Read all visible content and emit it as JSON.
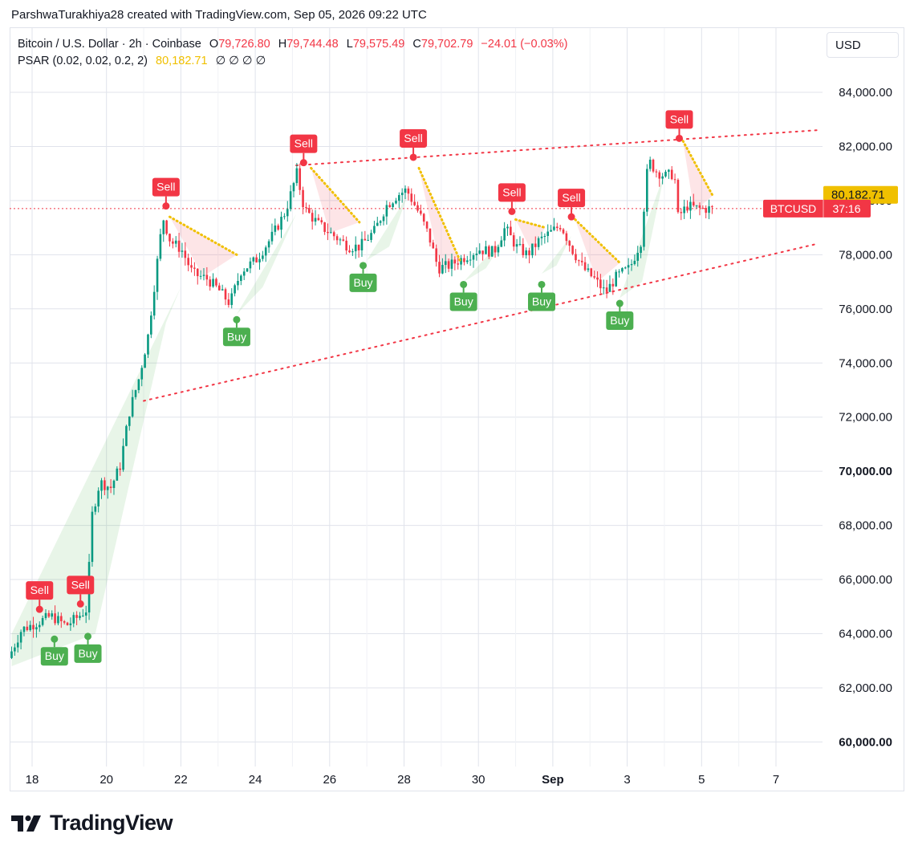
{
  "caption": "ParshwaTurakhiya28 created with TradingView.com, Sep 05, 2026 09:22 UTC",
  "legend": {
    "symbol": "Bitcoin / U.S. Dollar · 2h · Coinbase",
    "open_label": "O",
    "open": "79,726.80",
    "high_label": "H",
    "high": "79,744.48",
    "low_label": "L",
    "low": "79,575.49",
    "close_label": "C",
    "close": "79,702.79",
    "change": "−24.01 (−0.03%)",
    "psar_label": "PSAR (0.02, 0.02, 0.2, 2)",
    "psar_value": "80,182.71",
    "psar_flags": "∅ ∅ ∅ ∅"
  },
  "currency": "USD",
  "logo_text": "TradingView",
  "colors": {
    "up": "#089981",
    "down": "#f23645",
    "psar": "#f0c000",
    "buy": "#4caf50",
    "sell": "#f23645"
  },
  "chart_data": {
    "type": "candlestick",
    "title": "Bitcoin / U.S. Dollar · 2h · Coinbase",
    "ylim": [
      59000,
      86500
    ],
    "y_ticks": [
      "84,000.00",
      "82,000.00",
      "80,000.00",
      "78,000.00",
      "76,000.00",
      "74,000.00",
      "72,000.00",
      "70,000.00",
      "68,000.00",
      "66,000.00",
      "64,000.00",
      "62,000.00",
      "60,000.00"
    ],
    "y_tick_values": [
      84000,
      82000,
      80000,
      78000,
      76000,
      74000,
      72000,
      70000,
      68000,
      66000,
      64000,
      62000,
      60000
    ],
    "x_ticks": [
      "18",
      "20",
      "22",
      "24",
      "26",
      "28",
      "30",
      "Sep",
      "3",
      "5",
      "7"
    ],
    "x_tick_days": [
      18,
      20,
      22,
      24,
      26,
      28,
      30,
      32,
      34,
      36,
      38
    ],
    "grid": true,
    "current_price": {
      "label": "BTCUSD",
      "countdown": "37:16",
      "value": 79702.79
    },
    "psar_value": {
      "label": "80,182.71",
      "value": 80182.71
    },
    "price_path": [
      [
        17.45,
        63100
      ],
      [
        17.8,
        64150
      ],
      [
        18.2,
        64400
      ],
      [
        18.6,
        64650
      ],
      [
        19.0,
        64300
      ],
      [
        19.3,
        64600
      ],
      [
        19.55,
        64900
      ],
      [
        19.7,
        68400
      ],
      [
        19.9,
        69600
      ],
      [
        20.2,
        69400
      ],
      [
        20.45,
        70200
      ],
      [
        20.7,
        72200
      ],
      [
        20.95,
        73400
      ],
      [
        21.2,
        75000
      ],
      [
        21.4,
        77200
      ],
      [
        21.6,
        79400
      ],
      [
        21.8,
        78500
      ],
      [
        22.1,
        78200
      ],
      [
        22.4,
        77300
      ],
      [
        22.8,
        77100
      ],
      [
        23.1,
        76700
      ],
      [
        23.4,
        76200
      ],
      [
        23.7,
        77400
      ],
      [
        24.1,
        77800
      ],
      [
        24.5,
        78600
      ],
      [
        24.9,
        79600
      ],
      [
        25.2,
        81000
      ],
      [
        25.4,
        79700
      ],
      [
        25.8,
        79100
      ],
      [
        26.2,
        78700
      ],
      [
        26.6,
        78300
      ],
      [
        26.9,
        78300
      ],
      [
        27.3,
        78900
      ],
      [
        27.6,
        79800
      ],
      [
        27.9,
        80200
      ],
      [
        28.15,
        80400
      ],
      [
        28.5,
        79500
      ],
      [
        28.75,
        78700
      ],
      [
        29.0,
        77500
      ],
      [
        29.3,
        77600
      ],
      [
        29.7,
        77900
      ],
      [
        30.1,
        78200
      ],
      [
        30.5,
        78100
      ],
      [
        30.8,
        79000
      ],
      [
        31.1,
        78300
      ],
      [
        31.4,
        78000
      ],
      [
        31.7,
        78500
      ],
      [
        32.0,
        78800
      ],
      [
        32.3,
        79100
      ],
      [
        32.6,
        78200
      ],
      [
        32.9,
        77500
      ],
      [
        33.2,
        77100
      ],
      [
        33.5,
        76600
      ],
      [
        33.8,
        77200
      ],
      [
        34.15,
        77500
      ],
      [
        34.45,
        78500
      ],
      [
        34.65,
        81500
      ],
      [
        34.85,
        81100
      ],
      [
        35.1,
        80900
      ],
      [
        35.35,
        81000
      ],
      [
        35.45,
        79400
      ],
      [
        35.7,
        79800
      ],
      [
        36.0,
        79700
      ],
      [
        36.3,
        79700
      ]
    ],
    "signals": [
      {
        "type": "Sell",
        "label": "Sell",
        "x": 18.2,
        "price": 64900
      },
      {
        "type": "Buy",
        "label": "Buy",
        "x": 18.6,
        "price": 63800
      },
      {
        "type": "Buy",
        "label": "Buy",
        "x": 19.5,
        "price": 63900
      },
      {
        "type": "Sell",
        "label": "Sell",
        "x": 19.3,
        "price": 65100
      },
      {
        "type": "Sell",
        "label": "Sell",
        "x": 21.6,
        "price": 79800
      },
      {
        "type": "Buy",
        "label": "Buy",
        "x": 23.5,
        "price": 75600
      },
      {
        "type": "Sell",
        "label": "Sell",
        "x": 25.3,
        "price": 81400
      },
      {
        "type": "Buy",
        "label": "Buy",
        "x": 26.9,
        "price": 77600
      },
      {
        "type": "Sell",
        "label": "Sell",
        "x": 28.25,
        "price": 81600
      },
      {
        "type": "Buy",
        "label": "Buy",
        "x": 29.6,
        "price": 76900
      },
      {
        "type": "Sell",
        "label": "Sell",
        "x": 30.9,
        "price": 79600
      },
      {
        "type": "Buy",
        "label": "Buy",
        "x": 31.7,
        "price": 76900
      },
      {
        "type": "Sell",
        "label": "Sell",
        "x": 32.5,
        "price": 79400
      },
      {
        "type": "Buy",
        "label": "Buy",
        "x": 33.8,
        "price": 76200
      },
      {
        "type": "Sell",
        "label": "Sell",
        "x": 35.4,
        "price": 82300
      }
    ],
    "psar_segments": [
      [
        [
          21.7,
          79400
        ],
        [
          23.5,
          78000
        ]
      ],
      [
        [
          25.5,
          81200
        ],
        [
          26.8,
          79200
        ]
      ],
      [
        [
          28.4,
          81200
        ],
        [
          29.5,
          77800
        ]
      ],
      [
        [
          31.0,
          79300
        ],
        [
          31.8,
          79000
        ]
      ],
      [
        [
          32.6,
          79300
        ],
        [
          33.8,
          77700
        ]
      ],
      [
        [
          35.5,
          82200
        ],
        [
          36.3,
          80180
        ]
      ]
    ],
    "trendlines": [
      {
        "style": "dotted",
        "from": [
          25.1,
          81300
        ],
        "to": [
          39.1,
          82600
        ]
      },
      {
        "style": "dotted",
        "from": [
          21.0,
          72600
        ],
        "to": [
          39.1,
          78400
        ]
      }
    ],
    "buy_zones": [
      [
        [
          17.45,
          62800
        ],
        [
          19.7,
          64000
        ],
        [
          21.6,
          75500
        ],
        [
          22.0,
          76800
        ],
        [
          17.45,
          64000
        ]
      ],
      [
        [
          23.5,
          75800
        ],
        [
          25.1,
          79500
        ],
        [
          24.2,
          76800
        ]
      ],
      [
        [
          27.0,
          77800
        ],
        [
          28.1,
          80200
        ],
        [
          27.6,
          78300
        ]
      ],
      [
        [
          29.6,
          77000
        ],
        [
          30.8,
          78800
        ],
        [
          30.2,
          77500
        ]
      ],
      [
        [
          31.7,
          77300
        ],
        [
          32.5,
          78700
        ],
        [
          32.1,
          77600
        ]
      ],
      [
        [
          33.8,
          76400
        ],
        [
          35.0,
          81000
        ],
        [
          34.4,
          77000
        ]
      ]
    ],
    "sell_zones": [
      [
        [
          21.7,
          79400
        ],
        [
          23.5,
          78000
        ],
        [
          22.6,
          77200
        ]
      ],
      [
        [
          25.5,
          81200
        ],
        [
          26.8,
          79200
        ],
        [
          26.0,
          78800
        ]
      ],
      [
        [
          28.4,
          81200
        ],
        [
          29.5,
          77800
        ],
        [
          29.0,
          77400
        ]
      ],
      [
        [
          31.0,
          79300
        ],
        [
          31.8,
          79000
        ],
        [
          31.4,
          78200
        ]
      ],
      [
        [
          32.6,
          79300
        ],
        [
          33.8,
          77700
        ],
        [
          33.2,
          77000
        ]
      ],
      [
        [
          35.5,
          82200
        ],
        [
          36.3,
          80180
        ],
        [
          35.8,
          79600
        ]
      ]
    ]
  }
}
